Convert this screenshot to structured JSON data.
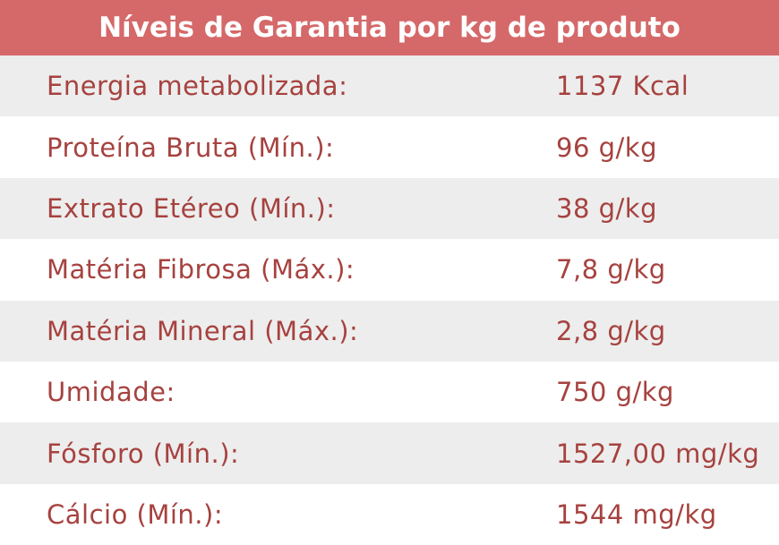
{
  "title": "Níveis de Garantia por kg de produto",
  "rows": [
    {
      "label": "Energia metabolizada:",
      "value": "1137 Kcal"
    },
    {
      "label": "Proteína Bruta (Mín.):",
      "value": "96 g/kg"
    },
    {
      "label": "Extrato Etéreo (Mín.):",
      "value": "38 g/kg"
    },
    {
      "label": "Matéria Fibrosa (Máx.):",
      "value": "7,8 g/kg"
    },
    {
      "label": "Matéria Mineral (Máx.):",
      "value": "2,8 g/kg"
    },
    {
      "label": "Umidade:",
      "value": "750 g/kg"
    },
    {
      "label": "Fósforo (Mín.):",
      "value": "1527,00 mg/kg"
    },
    {
      "label": "Cálcio (Mín.):",
      "value": "1544 mg/kg"
    }
  ],
  "colors": {
    "header_bg": "#d5696a",
    "header_text": "#ffffff",
    "row_text": "#a6423f",
    "shade_bg": "#ededed"
  }
}
